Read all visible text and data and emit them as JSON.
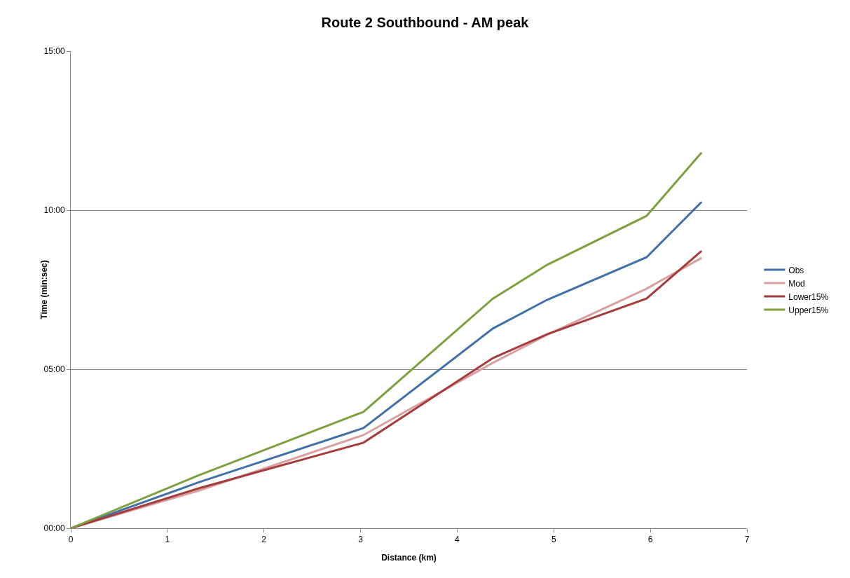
{
  "chart_data": {
    "type": "line",
    "title": "Route 2 Southbound - AM peak",
    "xlabel": "Distance (km)",
    "ylabel": "Time (min:sec)",
    "x": [
      0,
      1.33,
      3.03,
      4.37,
      4.93,
      5.96,
      6.53
    ],
    "series": [
      {
        "name": "Obs",
        "color": "#4170a8",
        "values": [
          0,
          1.45,
          3.15,
          6.28,
          7.18,
          8.52,
          10.26
        ]
      },
      {
        "name": "Mod",
        "color": "#d9a0a0",
        "values": [
          0,
          1.19,
          2.93,
          5.2,
          6.08,
          7.53,
          8.5
        ]
      },
      {
        "name": "Lower15%",
        "color": "#a33c3a",
        "values": [
          0,
          1.26,
          2.69,
          5.35,
          6.1,
          7.22,
          8.72
        ]
      },
      {
        "name": "Upper15%",
        "color": "#7ea03f",
        "values": [
          0,
          1.67,
          3.66,
          7.22,
          8.28,
          9.82,
          11.81
        ]
      }
    ],
    "xlim": [
      0,
      7
    ],
    "xticks": [
      0,
      1,
      2,
      3,
      4,
      5,
      6,
      7
    ],
    "ylim": [
      0,
      15
    ],
    "yticks": [
      {
        "value": 0,
        "label": "00:00"
      },
      {
        "value": 5,
        "label": "05:00"
      },
      {
        "value": 10,
        "label": "10:00"
      },
      {
        "value": 15,
        "label": "15:00"
      }
    ],
    "grid": "y",
    "legend": "right",
    "marker": "none",
    "line_style": "solid"
  }
}
